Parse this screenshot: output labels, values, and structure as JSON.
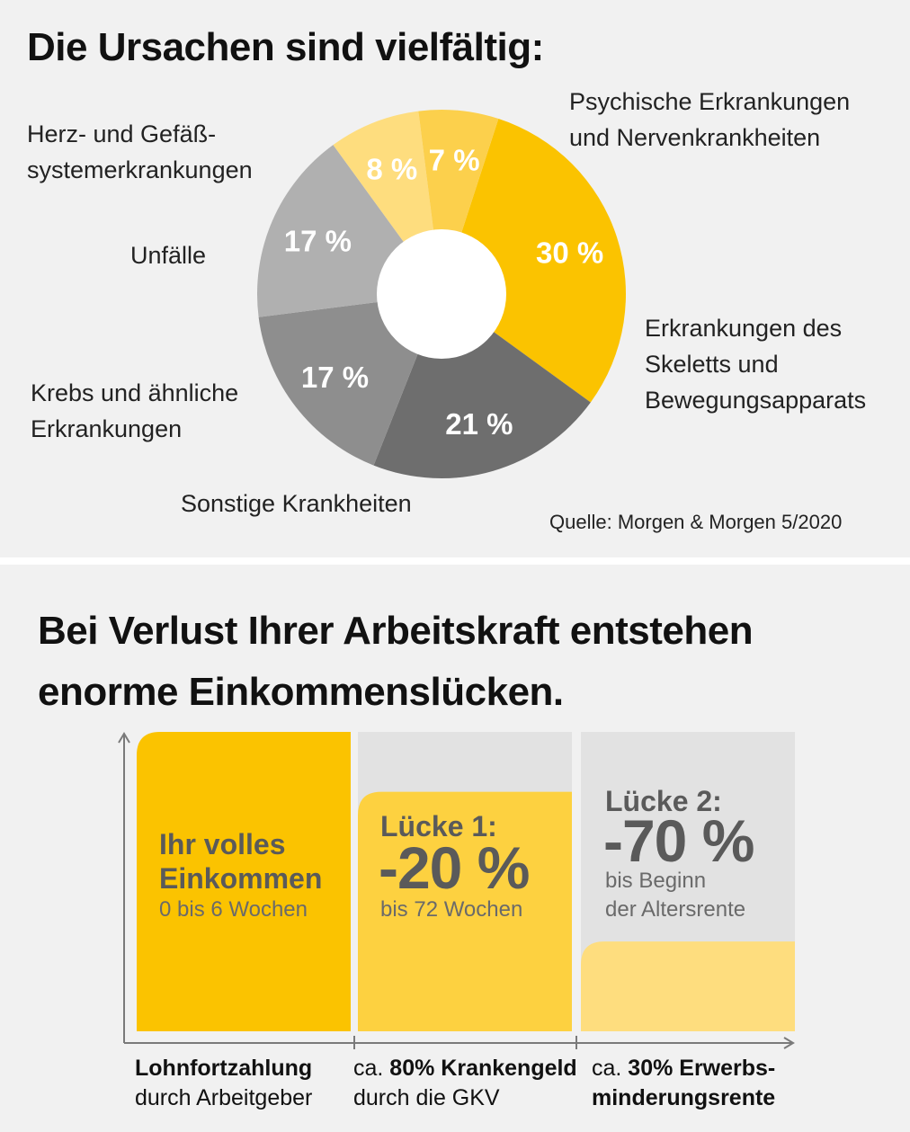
{
  "pie": {
    "title": "Die Ursachen sind vielfältig:",
    "source": "Quelle: Morgen & Morgen 5/2020",
    "chart_data": {
      "type": "pie",
      "slices": [
        {
          "label_lines": [
            "Psychische Erkrankungen",
            "und Nervenkrankheiten"
          ],
          "value": 30,
          "value_label": "30 %",
          "color": "#fbc300"
        },
        {
          "label_lines": [
            "Erkrankungen des",
            "Skeletts und",
            "Bewegungsapparats"
          ],
          "value": 21,
          "value_label": "21 %",
          "color": "#6e6e6e"
        },
        {
          "label_lines": [
            "Sonstige Krankheiten"
          ],
          "value": 17,
          "value_label": "17 %",
          "color": "#8e8e8e"
        },
        {
          "label_lines": [
            "Krebs und ähnliche",
            "Erkrankungen"
          ],
          "value": 17,
          "value_label": "17 %",
          "color": "#b0b0b0"
        },
        {
          "label_lines": [
            "Unfälle"
          ],
          "value": 8,
          "value_label": "8 %",
          "color": "#fedd7e"
        },
        {
          "label_lines": [
            "Herz- und Gefäß-",
            "systemerkrankungen"
          ],
          "value": 7,
          "value_label": "7 %",
          "color": "#fcd04c"
        }
      ]
    }
  },
  "income": {
    "title_lines": [
      "Bei Verlust Ihrer Arbeitskraft entstehen",
      "enorme Einkommenslücken."
    ],
    "chart_data": {
      "type": "bar",
      "phases": [
        {
          "head_lines": [
            "Ihr volles",
            "Einkommen"
          ],
          "big": "",
          "sub_lines": [
            "0 bis 6 Wochen"
          ],
          "income_share": 1.0,
          "fill": "#fbc300",
          "label_line1_prefix": "",
          "label_line1_bold": "Lohnfortzahlung",
          "label_line2": "durch Arbeitgeber",
          "label_line2_bold": ""
        },
        {
          "head_lines": [
            "Lücke 1:"
          ],
          "big": "-20 %",
          "sub_lines": [
            "bis 72 Wochen"
          ],
          "income_share": 0.8,
          "fill": "#fdd140",
          "label_line1_prefix": "ca. ",
          "label_line1_bold": "80% Krankengeld",
          "label_line2": "durch die GKV",
          "label_line2_bold": ""
        },
        {
          "head_lines": [
            "Lücke 2:"
          ],
          "big": "-70 %",
          "sub_lines": [
            "bis Beginn",
            "der Altersrente"
          ],
          "income_share": 0.3,
          "fill": "#fedd7e",
          "label_line1_prefix": "ca. ",
          "label_line1_bold": "30% Erwerbs-",
          "label_line2": "",
          "label_line2_bold": "minderungsrente"
        }
      ],
      "gap_color": "#e2e2e2"
    }
  }
}
